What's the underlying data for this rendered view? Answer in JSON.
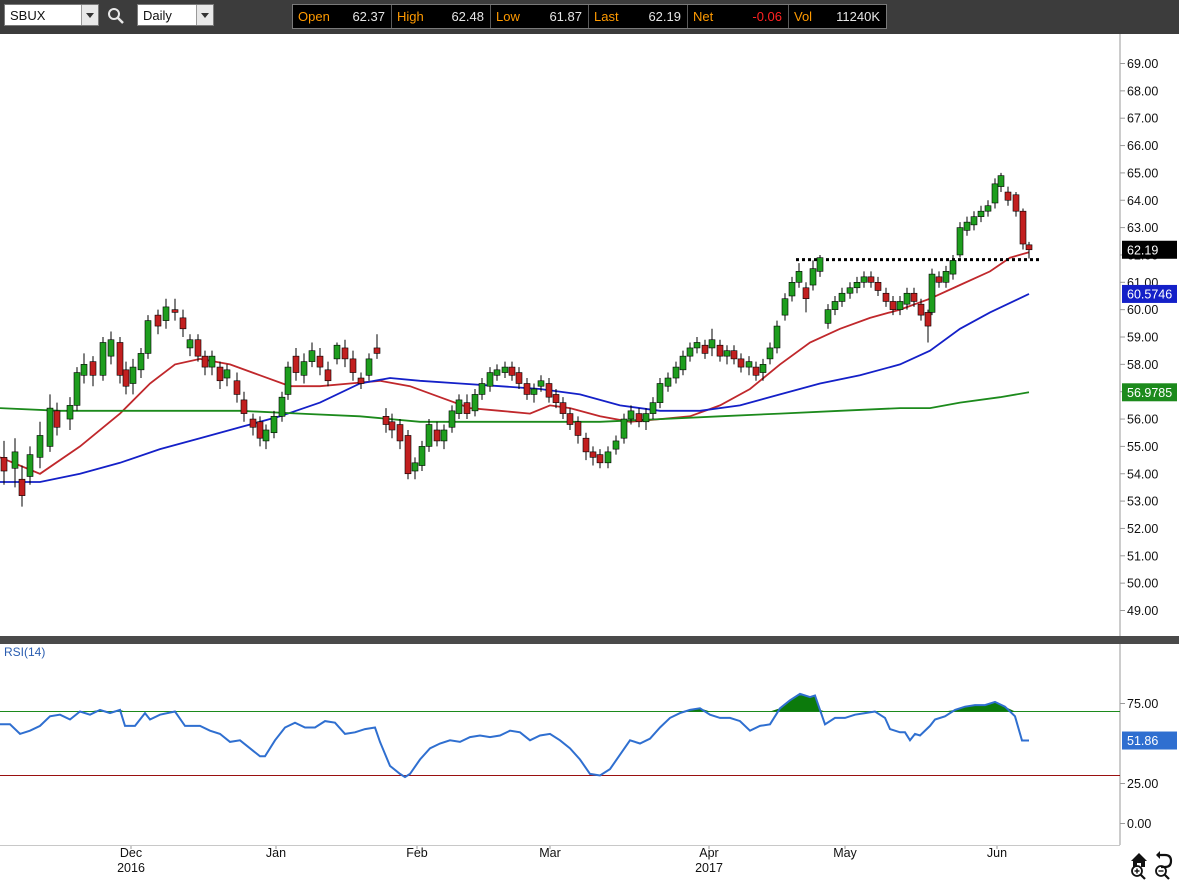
{
  "toolbar": {
    "symbol": "SBUX",
    "period": "Daily",
    "search_icon": "magnifier-icon"
  },
  "quote": [
    {
      "label": "Open",
      "value": "62.37"
    },
    {
      "label": "High",
      "value": "62.48"
    },
    {
      "label": "Low",
      "value": "61.87"
    },
    {
      "label": "Last",
      "value": "62.19"
    },
    {
      "label": "Net",
      "value": "-0.06"
    },
    {
      "label": "Vol",
      "value": "11240K"
    }
  ],
  "colors": {
    "up_candle": "#1e9e1e",
    "down_candle": "#c21f1f",
    "ma_short": "#c0282c",
    "ma_mid": "#1420c8",
    "ma_long": "#1c8a1c",
    "rsi_line": "#2f6fd0",
    "rsi_fill": "#0c7a0c"
  },
  "chart_data": [
    {
      "type": "candlestick",
      "y_axis_ticks": [
        "69.00",
        "68.00",
        "67.00",
        "66.00",
        "65.00",
        "64.00",
        "63.00",
        "62.00",
        "61.00",
        "60.00",
        "59.00",
        "58.00",
        "57.00",
        "56.00",
        "55.00",
        "54.00",
        "53.00",
        "52.00",
        "51.00",
        "50.00",
        "49.00"
      ],
      "x_axis_ticks": [
        {
          "label": "Dec",
          "sublabel": "2016"
        },
        {
          "label": "Jan",
          "sublabel": ""
        },
        {
          "label": "Feb",
          "sublabel": ""
        },
        {
          "label": "Mar",
          "sublabel": ""
        },
        {
          "label": "Apr",
          "sublabel": "2017"
        },
        {
          "label": "May",
          "sublabel": ""
        },
        {
          "label": "Jun",
          "sublabel": ""
        }
      ],
      "ylim": [
        48.2,
        70.0
      ],
      "last_price_label": "62.19",
      "ma_labels": [
        "60.5746",
        "56.9785"
      ],
      "resistance_level": 61.83
    },
    {
      "type": "line",
      "indicator": "RSI(14)",
      "y_axis_ticks": [
        "75.00",
        "25.00",
        "0.00"
      ],
      "current_value": "51.86",
      "upper_band": 70,
      "lower_band": 30,
      "ylim": [
        -5,
        100
      ]
    }
  ],
  "corner_icons": [
    "home-icon",
    "undo-icon",
    "zoom-in-icon",
    "zoom-out-icon"
  ]
}
